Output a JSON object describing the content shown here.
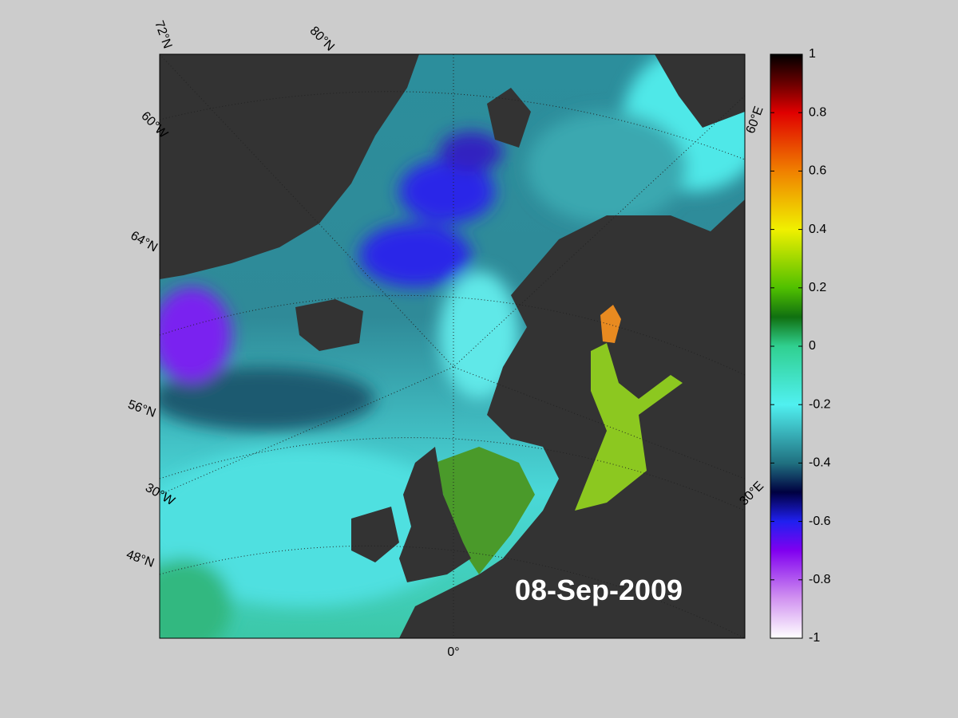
{
  "map": {
    "date": "08-Sep-2009",
    "graticule_labels": [
      "72°N",
      "80°N",
      "60°W",
      "64°N",
      "56°N",
      "30°W",
      "48°N",
      "0°",
      "30°E",
      "60°E"
    ],
    "colorbar": {
      "lim": [
        -1,
        1
      ],
      "ticks": [
        1,
        0.8,
        0.6,
        0.4,
        0.2,
        0,
        -0.2,
        -0.4,
        -0.6,
        -0.8,
        -1
      ]
    }
  }
}
